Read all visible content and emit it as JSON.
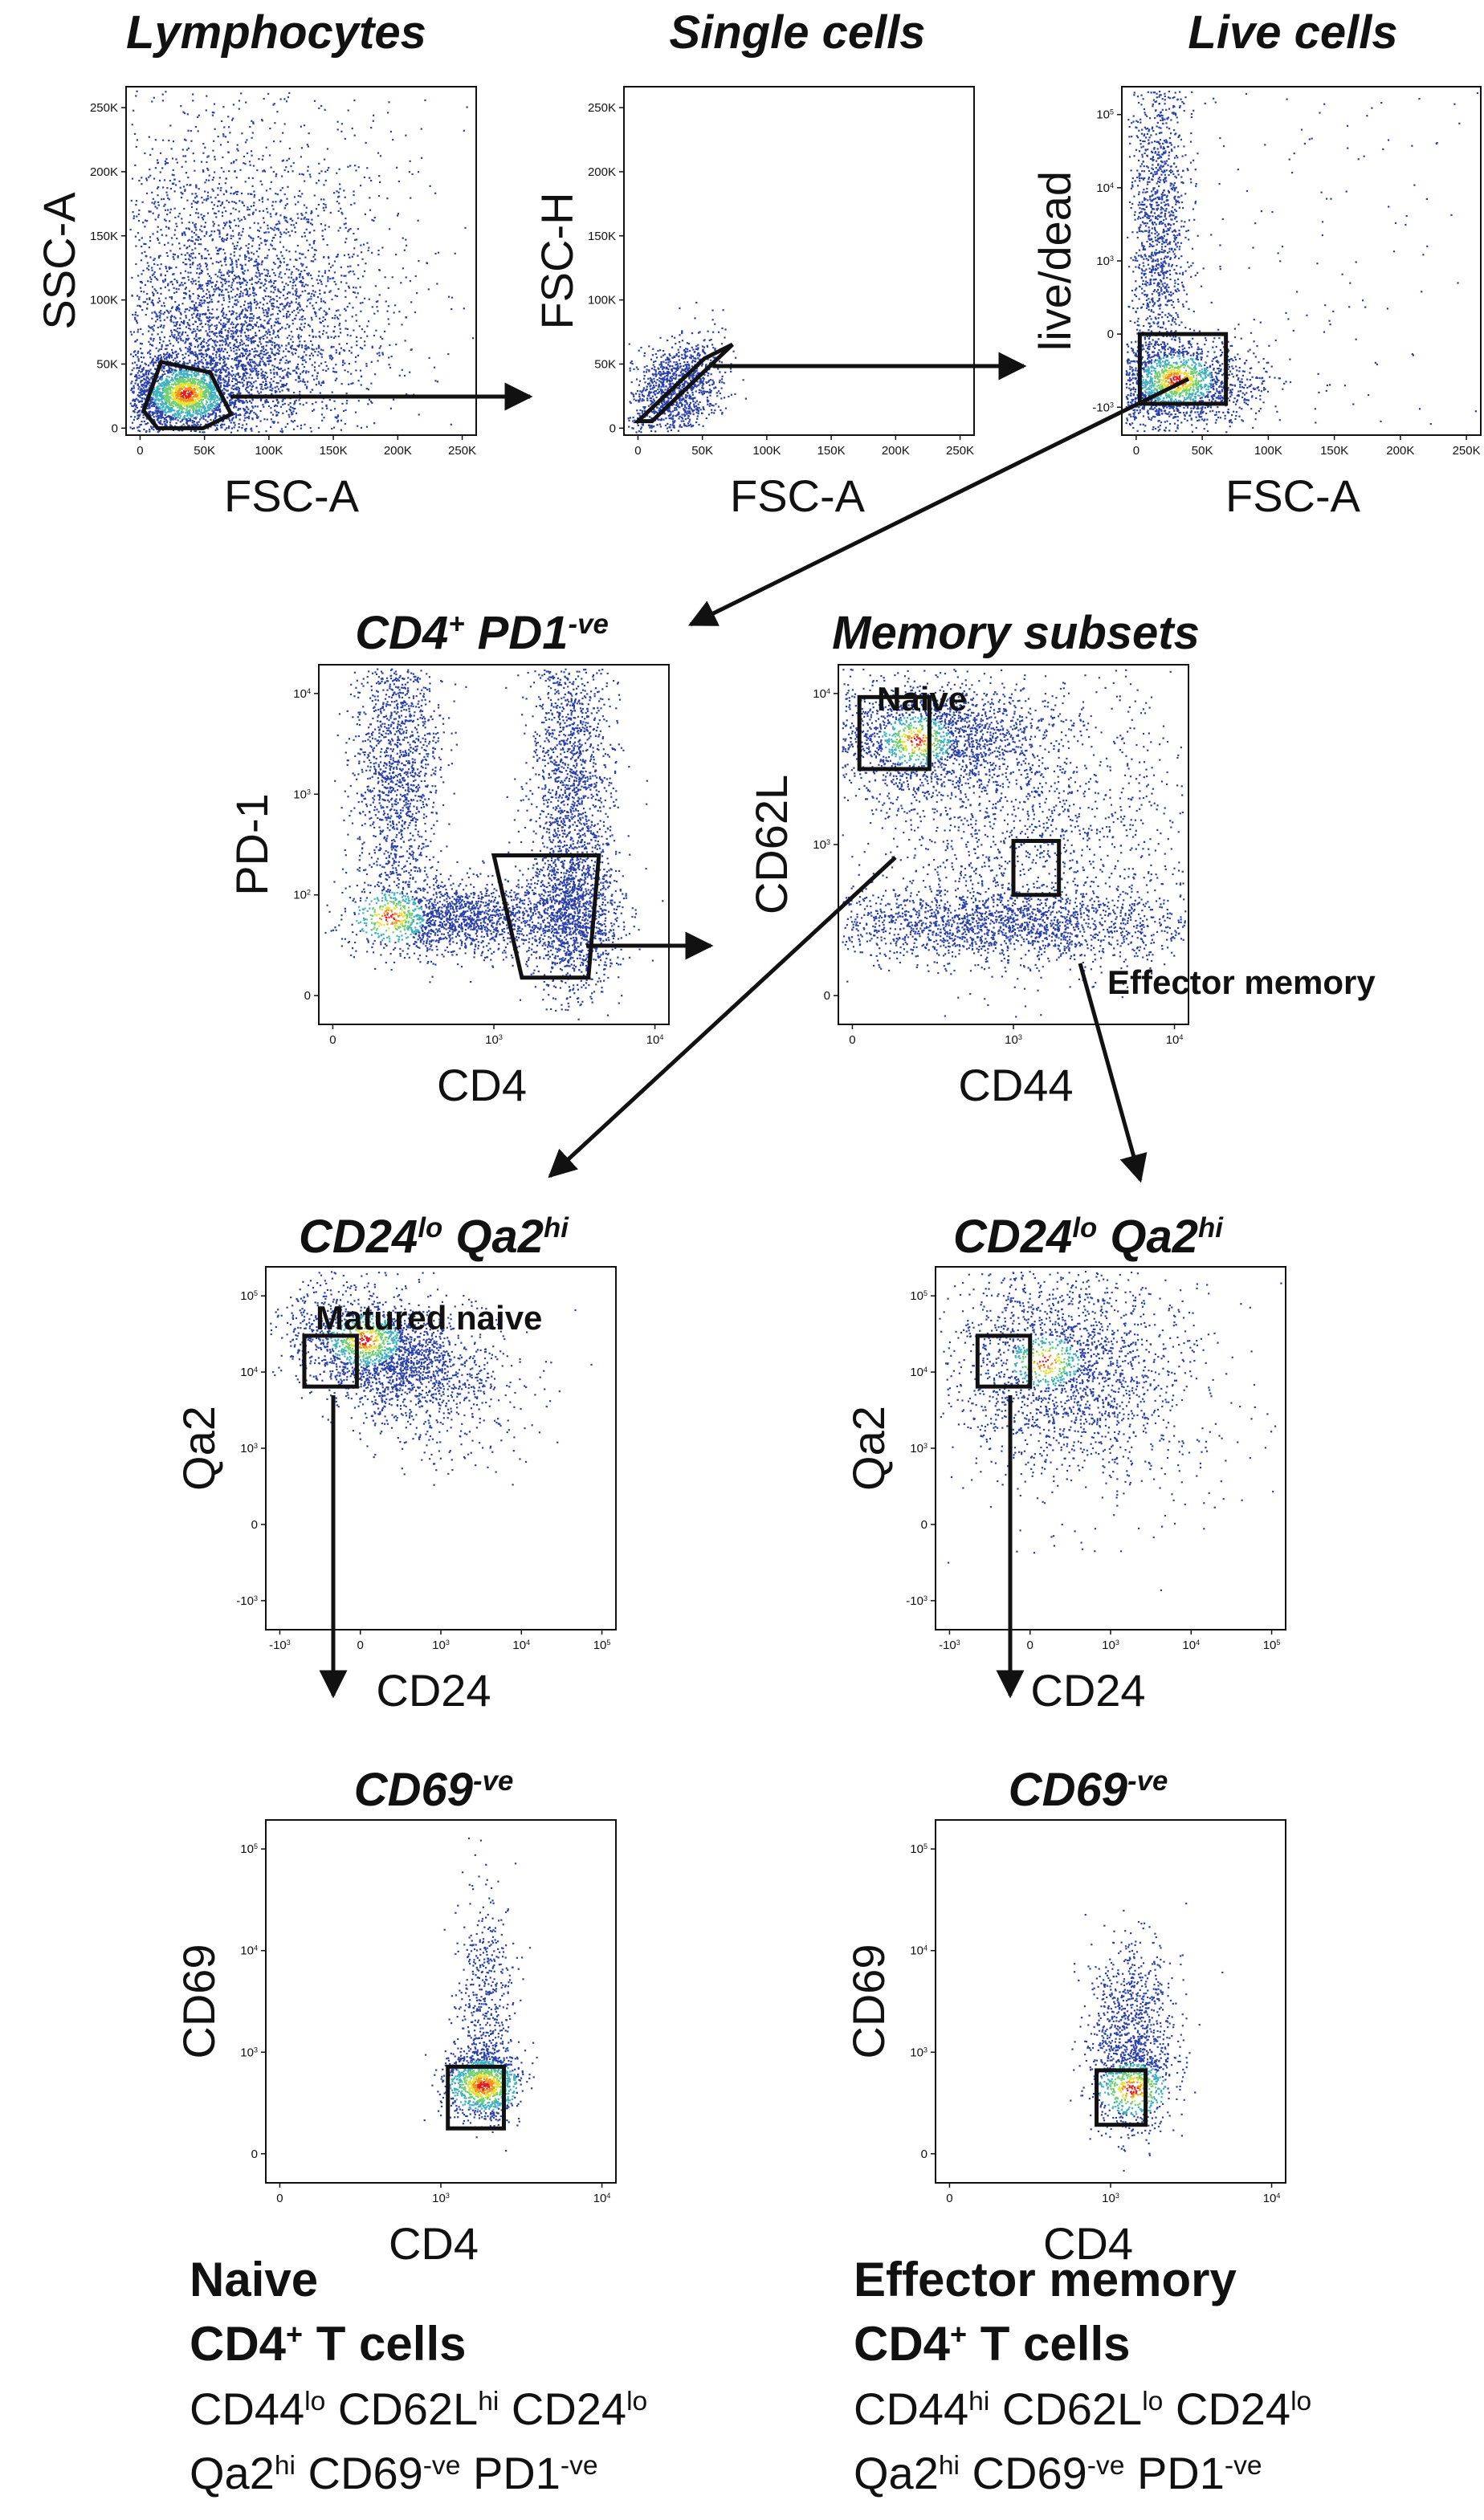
{
  "figure": {
    "colors": {
      "dot_low": "#2a3fa8",
      "dot_mid": "#3fb0c0",
      "dot_high1": "#e8e030",
      "dot_high2": "#e02020",
      "gate": "#111111",
      "arrow": "#111111"
    },
    "panels": [
      {
        "id": "lymphocytes",
        "title": [
          {
            "t": "Lymphocytes"
          }
        ],
        "xlabel": "FSC-A",
        "ylabel": "SSC-A",
        "xticks": [
          "0",
          "50K",
          "100K",
          "150K",
          "200K",
          "250K"
        ],
        "yticks": [
          "0",
          "50K",
          "100K",
          "150K",
          "200K",
          "250K"
        ]
      },
      {
        "id": "single_cells",
        "title": [
          {
            "t": "Single cells"
          }
        ],
        "xlabel": "FSC-A",
        "ylabel": "FSC-H",
        "xticks": [
          "0",
          "50K",
          "100K",
          "150K",
          "200K",
          "250K"
        ],
        "yticks": [
          "0",
          "50K",
          "100K",
          "150K",
          "200K",
          "250K"
        ]
      },
      {
        "id": "live_cells",
        "title": [
          {
            "t": "Live cells"
          }
        ],
        "xlabel": "FSC-A",
        "ylabel": "live/dead",
        "xticks": [
          "0",
          "50K",
          "100K",
          "150K",
          "200K",
          "250K"
        ],
        "yticks": [
          {
            "b": "10",
            "e": "5"
          },
          {
            "b": "10",
            "e": "4"
          },
          {
            "b": "10",
            "e": "3"
          },
          {
            "b": "0"
          },
          {
            "b": "-10",
            "e": "3"
          }
        ]
      },
      {
        "id": "cd4_pd1",
        "title": [
          {
            "t": "CD4"
          },
          {
            "t": "+",
            "sup": true
          },
          {
            "t": " PD1"
          },
          {
            "t": "-ve",
            "sup": true
          }
        ],
        "xlabel": "CD4",
        "ylabel": "PD-1",
        "xticks": [
          {
            "b": "0"
          },
          {
            "b": "10",
            "e": "3"
          },
          {
            "b": "10",
            "e": "4"
          }
        ],
        "yticks": [
          {
            "b": "10",
            "e": "4"
          },
          {
            "b": "10",
            "e": "3"
          },
          {
            "b": "10",
            "e": "2"
          },
          {
            "b": "0"
          }
        ]
      },
      {
        "id": "memory_subsets",
        "title": [
          {
            "t": "Memory subsets"
          }
        ],
        "xlabel": "CD44",
        "ylabel": "CD62L",
        "xticks": [
          {
            "b": "0"
          },
          {
            "b": "10",
            "e": "3"
          },
          {
            "b": "10",
            "e": "4"
          }
        ],
        "yticks": [
          {
            "b": "10",
            "e": "4"
          },
          {
            "b": "10",
            "e": "3"
          },
          {
            "b": "0"
          }
        ],
        "gate_labels": [
          "Naive",
          "Effector memory"
        ]
      },
      {
        "id": "cd24_qa2_naive",
        "title": [
          {
            "t": "CD24"
          },
          {
            "t": "lo",
            "sup": true
          },
          {
            "t": " Qa2"
          },
          {
            "t": "hi",
            "sup": true
          }
        ],
        "xlabel": "CD24",
        "ylabel": "Qa2",
        "xticks": [
          {
            "b": "-10",
            "e": "3"
          },
          {
            "b": "0"
          },
          {
            "b": "10",
            "e": "3"
          },
          {
            "b": "10",
            "e": "4"
          },
          {
            "b": "10",
            "e": "5"
          }
        ],
        "yticks": [
          {
            "b": "10",
            "e": "5"
          },
          {
            "b": "10",
            "e": "4"
          },
          {
            "b": "10",
            "e": "3"
          },
          {
            "b": "0"
          },
          {
            "b": "-10",
            "e": "3"
          }
        ],
        "gate_labels": [
          "Matured naive"
        ]
      },
      {
        "id": "cd24_qa2_em",
        "title": [
          {
            "t": "CD24"
          },
          {
            "t": "lo",
            "sup": true
          },
          {
            "t": " Qa2"
          },
          {
            "t": "hi",
            "sup": true
          }
        ],
        "xlabel": "CD24",
        "ylabel": "Qa2",
        "xticks": [
          {
            "b": "-10",
            "e": "3"
          },
          {
            "b": "0"
          },
          {
            "b": "10",
            "e": "3"
          },
          {
            "b": "10",
            "e": "4"
          },
          {
            "b": "10",
            "e": "5"
          }
        ],
        "yticks": [
          {
            "b": "10",
            "e": "5"
          },
          {
            "b": "10",
            "e": "4"
          },
          {
            "b": "10",
            "e": "3"
          },
          {
            "b": "0"
          },
          {
            "b": "-10",
            "e": "3"
          }
        ]
      },
      {
        "id": "cd69_naive",
        "title": [
          {
            "t": "CD69"
          },
          {
            "t": "-ve",
            "sup": true
          }
        ],
        "xlabel": "CD4",
        "ylabel": "CD69",
        "xticks": [
          {
            "b": "0"
          },
          {
            "b": "10",
            "e": "3"
          },
          {
            "b": "10",
            "e": "4"
          }
        ],
        "yticks": [
          {
            "b": "10",
            "e": "5"
          },
          {
            "b": "10",
            "e": "4"
          },
          {
            "b": "10",
            "e": "3"
          },
          {
            "b": "0"
          }
        ]
      },
      {
        "id": "cd69_em",
        "title": [
          {
            "t": "CD69"
          },
          {
            "t": "-ve",
            "sup": true
          }
        ],
        "xlabel": "CD4",
        "ylabel": "CD69",
        "xticks": [
          {
            "b": "0"
          },
          {
            "b": "10",
            "e": "3"
          },
          {
            "b": "10",
            "e": "4"
          }
        ],
        "yticks": [
          {
            "b": "10",
            "e": "5"
          },
          {
            "b": "10",
            "e": "4"
          },
          {
            "b": "10",
            "e": "3"
          },
          {
            "b": "0"
          }
        ]
      }
    ],
    "summaries": [
      {
        "id": "naive",
        "bold_lines": [
          "Naive",
          [
            {
              "t": "CD4"
            },
            {
              "t": "+",
              "sup": true
            },
            {
              "t": " T cells"
            }
          ]
        ],
        "lines": [
          [
            {
              "t": "CD44"
            },
            {
              "t": "lo",
              "sup": true
            },
            {
              "t": " CD62L"
            },
            {
              "t": "hi",
              "sup": true
            },
            {
              "t": " CD24"
            },
            {
              "t": "lo",
              "sup": true
            }
          ],
          [
            {
              "t": "Qa2"
            },
            {
              "t": "hi",
              "sup": true
            },
            {
              "t": " CD69"
            },
            {
              "t": "-ve",
              "sup": true
            },
            {
              "t": " PD1"
            },
            {
              "t": "-ve",
              "sup": true
            }
          ]
        ]
      },
      {
        "id": "effector_memory",
        "bold_lines": [
          "Effector memory",
          [
            {
              "t": "CD4"
            },
            {
              "t": "+",
              "sup": true
            },
            {
              "t": " T cells"
            }
          ]
        ],
        "lines": [
          [
            {
              "t": "CD44"
            },
            {
              "t": "hi",
              "sup": true
            },
            {
              "t": " CD62L"
            },
            {
              "t": "lo",
              "sup": true
            },
            {
              "t": " CD24"
            },
            {
              "t": "lo",
              "sup": true
            }
          ],
          [
            {
              "t": "Qa2"
            },
            {
              "t": "hi",
              "sup": true
            },
            {
              "t": " CD69"
            },
            {
              "t": "-ve",
              "sup": true
            },
            {
              "t": " PD1"
            },
            {
              "t": "-ve",
              "sup": true
            }
          ]
        ]
      }
    ]
  }
}
